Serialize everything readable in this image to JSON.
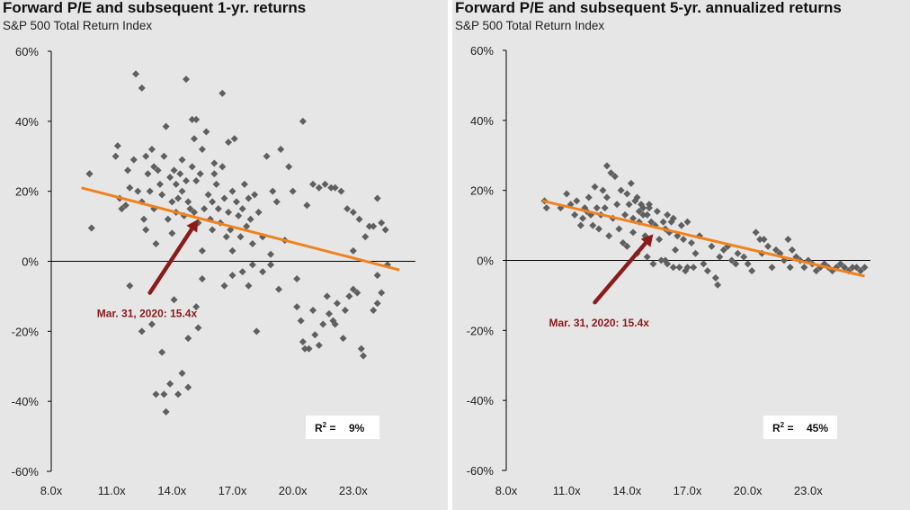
{
  "chart_data": [
    {
      "type": "scatter",
      "title": "Forward P/E and subsequent 1-yr. returns",
      "subtitle": "S&P 500 Total Return Index",
      "xlabel": "",
      "ylabel": "",
      "xlim": [
        8,
        26
      ],
      "ylim": [
        -60,
        60
      ],
      "xticks": [
        "8.0x",
        "11.0x",
        "14.0x",
        "17.0x",
        "20.0x",
        "23.0x"
      ],
      "xtick_values": [
        8,
        11,
        14,
        17,
        20,
        23
      ],
      "yticks": [
        "60%",
        "40%",
        "20%",
        "0%",
        "-20%",
        "-40%",
        "-60%"
      ],
      "ytick_values": [
        60,
        40,
        20,
        0,
        -20,
        -40,
        -60
      ],
      "trendline": {
        "x": [
          9.5,
          25.3
        ],
        "y": [
          21,
          -2.5
        ],
        "color": "#f0821e"
      },
      "annotation": {
        "label": "Mar. 31, 2020: 15.4x",
        "from": [
          12.9,
          -9
        ],
        "to": [
          15.3,
          12
        ],
        "color": "#8b1a1a"
      },
      "r2": {
        "label": "R",
        "value": "9%"
      },
      "points": [
        [
          9.9,
          25
        ],
        [
          10,
          9.5
        ],
        [
          11.2,
          30
        ],
        [
          11.3,
          33
        ],
        [
          11.4,
          18
        ],
        [
          11.5,
          15
        ],
        [
          11.7,
          16
        ],
        [
          11.8,
          26
        ],
        [
          11.9,
          21
        ],
        [
          12.1,
          29
        ],
        [
          12.2,
          53.5
        ],
        [
          12.3,
          20
        ],
        [
          12.5,
          49.5
        ],
        [
          12.5,
          17
        ],
        [
          12.6,
          12
        ],
        [
          12.7,
          9
        ],
        [
          12.7,
          30
        ],
        [
          12.8,
          25
        ],
        [
          12.9,
          20
        ],
        [
          13,
          32
        ],
        [
          13.1,
          27
        ],
        [
          13.1,
          15
        ],
        [
          13.2,
          5
        ],
        [
          13.3,
          26
        ],
        [
          13.4,
          22
        ],
        [
          13.5,
          19
        ],
        [
          13.6,
          30
        ],
        [
          13.7,
          38.5
        ],
        [
          13.8,
          12
        ],
        [
          13.9,
          24
        ],
        [
          14,
          17
        ],
        [
          14,
          8
        ],
        [
          14.1,
          26
        ],
        [
          14.2,
          14
        ],
        [
          14.2,
          22
        ],
        [
          14.3,
          18
        ],
        [
          14.4,
          25
        ],
        [
          14.5,
          20
        ],
        [
          14.5,
          29
        ],
        [
          14.6,
          13
        ],
        [
          14.7,
          52
        ],
        [
          14.7,
          23
        ],
        [
          14.8,
          17
        ],
        [
          14.9,
          15
        ],
        [
          15,
          27
        ],
        [
          15,
          40.5
        ],
        [
          15.1,
          35
        ],
        [
          15.1,
          14
        ],
        [
          15.2,
          40.5
        ],
        [
          15.2,
          23
        ],
        [
          15.3,
          11
        ],
        [
          15.4,
          25
        ],
        [
          15.5,
          3
        ],
        [
          15.5,
          32
        ],
        [
          15.6,
          15
        ],
        [
          15.7,
          37
        ],
        [
          15.8,
          19
        ],
        [
          15.9,
          12
        ],
        [
          16,
          17
        ],
        [
          16,
          9
        ],
        [
          16.1,
          25
        ],
        [
          16.1,
          28
        ],
        [
          16.2,
          22
        ],
        [
          16.3,
          15
        ],
        [
          16.4,
          11
        ],
        [
          16.5,
          48
        ],
        [
          16.5,
          27
        ],
        [
          16.6,
          18
        ],
        [
          16.7,
          7
        ],
        [
          16.8,
          34
        ],
        [
          16.8,
          14
        ],
        [
          16.9,
          9
        ],
        [
          17,
          20
        ],
        [
          17,
          3
        ],
        [
          17.1,
          35
        ],
        [
          17.2,
          17
        ],
        [
          17.3,
          13
        ],
        [
          17.4,
          7
        ],
        [
          17.5,
          15
        ],
        [
          17.6,
          22
        ],
        [
          17.7,
          10
        ],
        [
          17.8,
          18
        ],
        [
          17.9,
          12
        ],
        [
          18,
          5
        ],
        [
          18.1,
          19
        ],
        [
          18.3,
          14
        ],
        [
          18.5,
          7
        ],
        [
          18.7,
          30
        ],
        [
          18.9,
          2
        ],
        [
          19,
          20
        ],
        [
          19.2,
          17
        ],
        [
          19.4,
          32
        ],
        [
          19.6,
          6
        ],
        [
          19.8,
          27
        ],
        [
          20,
          20
        ],
        [
          20.2,
          -5
        ],
        [
          20.5,
          40
        ],
        [
          20.7,
          16
        ],
        [
          21,
          22
        ],
        [
          21.3,
          21
        ],
        [
          21.6,
          22
        ],
        [
          21.9,
          21
        ],
        [
          22.1,
          21
        ],
        [
          22.4,
          20
        ],
        [
          22.7,
          15
        ],
        [
          23,
          14
        ],
        [
          23,
          3
        ],
        [
          23.3,
          12
        ],
        [
          23.6,
          7
        ],
        [
          23.8,
          10
        ],
        [
          24,
          10
        ],
        [
          24.2,
          18
        ],
        [
          24.4,
          11
        ],
        [
          24.6,
          9
        ],
        [
          24.2,
          -4
        ],
        [
          24.4,
          -9
        ],
        [
          24.7,
          -1
        ],
        [
          11.9,
          -7
        ],
        [
          12.5,
          -20
        ],
        [
          13,
          -18
        ],
        [
          13.2,
          -38
        ],
        [
          13.5,
          -26
        ],
        [
          13.6,
          -38
        ],
        [
          13.7,
          -43
        ],
        [
          13.9,
          -35
        ],
        [
          14.1,
          -11
        ],
        [
          14.3,
          -38
        ],
        [
          14.5,
          -32
        ],
        [
          14.8,
          -22
        ],
        [
          14.8,
          -36
        ],
        [
          15.2,
          -13
        ],
        [
          15.3,
          -19
        ],
        [
          15.5,
          -5
        ],
        [
          16.6,
          -7
        ],
        [
          17,
          -4
        ],
        [
          17.5,
          -3
        ],
        [
          17.8,
          -7
        ],
        [
          18,
          -1
        ],
        [
          18.2,
          -20
        ],
        [
          18.5,
          -3
        ],
        [
          18.9,
          -1
        ],
        [
          19.3,
          -8
        ],
        [
          20.2,
          -13
        ],
        [
          20.4,
          -17
        ],
        [
          20.5,
          -23
        ],
        [
          20.6,
          -25
        ],
        [
          20.8,
          -25
        ],
        [
          21,
          -14
        ],
        [
          21.1,
          -21
        ],
        [
          21.3,
          -24
        ],
        [
          21.5,
          -18
        ],
        [
          21.7,
          -10
        ],
        [
          21.8,
          -15
        ],
        [
          22,
          -17
        ],
        [
          22.1,
          -18
        ],
        [
          22.2,
          -12
        ],
        [
          22.5,
          -22
        ],
        [
          22.6,
          -14
        ],
        [
          22.8,
          -10
        ],
        [
          23,
          -8
        ],
        [
          23.2,
          -9
        ],
        [
          23.4,
          -25
        ],
        [
          23.5,
          -27
        ],
        [
          24,
          -14
        ],
        [
          24.2,
          -12
        ],
        [
          9.9,
          25
        ]
      ]
    },
    {
      "type": "scatter",
      "title": "Forward P/E and subsequent 5-yr. annualized returns",
      "subtitle": "S&P 500 Total Return Index",
      "xlabel": "",
      "ylabel": "",
      "xlim": [
        8,
        26
      ],
      "ylim": [
        -60,
        60
      ],
      "xticks": [
        "8.0x",
        "11.0x",
        "14.0x",
        "17.0x",
        "20.0x",
        "23.0x"
      ],
      "xtick_values": [
        8,
        11,
        14,
        17,
        20,
        23
      ],
      "yticks": [
        "60%",
        "40%",
        "20%",
        "0%",
        "-20%",
        "-40%",
        "-60%"
      ],
      "ytick_values": [
        60,
        40,
        20,
        0,
        -20,
        -40,
        -60
      ],
      "trendline": {
        "x": [
          9.8,
          25.8
        ],
        "y": [
          17,
          -4.5
        ],
        "color": "#f0821e"
      },
      "annotation": {
        "label": "Mar. 31, 2020: 15.4x",
        "from": [
          12.4,
          -12
        ],
        "to": [
          15.3,
          7.5
        ],
        "color": "#8b1a1a"
      },
      "r2": {
        "label": "R",
        "value": "45%"
      },
      "points": [
        [
          9.9,
          17
        ],
        [
          10,
          15
        ],
        [
          10.7,
          15
        ],
        [
          11,
          19
        ],
        [
          11.2,
          16
        ],
        [
          11.4,
          13
        ],
        [
          11.5,
          17
        ],
        [
          11.7,
          10
        ],
        [
          11.8,
          12
        ],
        [
          11.9,
          15
        ],
        [
          12,
          14
        ],
        [
          12.1,
          18
        ],
        [
          12.2,
          13
        ],
        [
          12.3,
          10
        ],
        [
          12.4,
          21
        ],
        [
          12.5,
          15
        ],
        [
          12.6,
          9
        ],
        [
          12.7,
          13
        ],
        [
          12.8,
          20
        ],
        [
          12.9,
          15
        ],
        [
          13,
          27
        ],
        [
          13,
          18
        ],
        [
          13.1,
          7
        ],
        [
          13.2,
          25
        ],
        [
          13.3,
          12
        ],
        [
          13.4,
          24
        ],
        [
          13.5,
          16
        ],
        [
          13.6,
          9
        ],
        [
          13.7,
          20
        ],
        [
          13.8,
          5
        ],
        [
          13.9,
          13
        ],
        [
          14,
          19
        ],
        [
          14,
          4
        ],
        [
          14.1,
          16
        ],
        [
          14.2,
          22
        ],
        [
          14.3,
          8
        ],
        [
          14.4,
          17
        ],
        [
          14.5,
          18
        ],
        [
          14.5,
          2
        ],
        [
          14.6,
          11
        ],
        [
          14.7,
          16
        ],
        [
          14.8,
          15
        ],
        [
          14.9,
          7
        ],
        [
          15,
          13
        ],
        [
          15,
          1
        ],
        [
          15.1,
          16
        ],
        [
          15.2,
          11
        ],
        [
          15.3,
          -1
        ],
        [
          15.4,
          10
        ],
        [
          15.5,
          14
        ],
        [
          15.6,
          6
        ],
        [
          15.7,
          0
        ],
        [
          15.8,
          11
        ],
        [
          15.9,
          9
        ],
        [
          16,
          13
        ],
        [
          16,
          -1
        ],
        [
          16.1,
          8
        ],
        [
          16.2,
          11
        ],
        [
          16.3,
          12
        ],
        [
          16.4,
          3
        ],
        [
          16.5,
          7
        ],
        [
          16.6,
          -2
        ],
        [
          16.7,
          10
        ],
        [
          16.8,
          6
        ],
        [
          17,
          11
        ],
        [
          17,
          -2
        ],
        [
          17.2,
          5
        ],
        [
          17.4,
          2
        ],
        [
          17.6,
          7
        ],
        [
          17.8,
          -1
        ],
        [
          18,
          -3
        ],
        [
          18.2,
          4
        ],
        [
          18.4,
          -5
        ],
        [
          18.5,
          -7
        ],
        [
          18.6,
          1
        ],
        [
          18.8,
          3
        ],
        [
          19,
          4
        ],
        [
          19.2,
          0
        ],
        [
          19.4,
          -1
        ],
        [
          19.5,
          2
        ],
        [
          19.8,
          1
        ],
        [
          20,
          -1
        ],
        [
          20.2,
          -3
        ],
        [
          20.4,
          8
        ],
        [
          20.6,
          6
        ],
        [
          20.7,
          2
        ],
        [
          20.8,
          6
        ],
        [
          21,
          4
        ],
        [
          21.2,
          -2
        ],
        [
          21.4,
          3
        ],
        [
          21.6,
          2
        ],
        [
          21.8,
          0
        ],
        [
          22,
          6
        ],
        [
          22.1,
          -2
        ],
        [
          22.2,
          3
        ],
        [
          22.4,
          1
        ],
        [
          22.6,
          0
        ],
        [
          22.8,
          -2
        ],
        [
          23,
          0
        ],
        [
          23.2,
          -1
        ],
        [
          23.4,
          -3
        ],
        [
          23.6,
          -2
        ],
        [
          23.8,
          -1
        ],
        [
          24,
          -2
        ],
        [
          24.2,
          -3
        ],
        [
          24.4,
          -2
        ],
        [
          24.6,
          -1
        ],
        [
          24.8,
          -2
        ],
        [
          25,
          -3
        ],
        [
          25.2,
          -2
        ],
        [
          25.4,
          -2
        ],
        [
          25.6,
          -3
        ],
        [
          25.8,
          -2
        ],
        [
          14.8,
          13
        ],
        [
          15.1,
          15
        ],
        [
          14.6,
          14
        ],
        [
          14.3,
          12
        ],
        [
          16.9,
          -3
        ],
        [
          17.3,
          -2
        ],
        [
          15.9,
          0
        ],
        [
          16.3,
          -2
        ]
      ]
    }
  ],
  "colors": {
    "point": "#5f5f5f",
    "trend": "#f0821e",
    "arrow": "#8b1a1a",
    "axis": "#000000"
  }
}
